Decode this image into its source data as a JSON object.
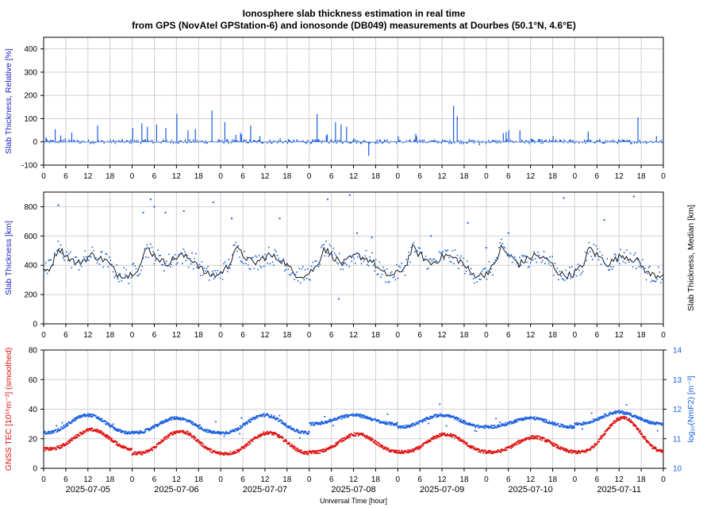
{
  "title": {
    "line1": "Ionosphere slab thickness estimation in real time",
    "line2": "from GPS (NovAtel GPStation-6) and ionosonde (DB049) measurements at Dourbes (50.1°N, 4.6°E)"
  },
  "colors": {
    "blue": "#1a5fe0",
    "red": "#e01010",
    "black": "#000000",
    "grid": "#d0d0d0",
    "ylabel_blue": "#2020c0"
  },
  "chart_data": [
    {
      "id": "relative",
      "type": "bar",
      "ylabel": "Slab Thickness, Relative [%]",
      "ylim": [
        -100,
        450
      ],
      "yticks": [
        -100,
        0,
        100,
        200,
        300,
        400
      ],
      "xlim_hours": [
        0,
        168
      ],
      "xtick_labels": [
        "0",
        "6",
        "12",
        "18",
        "0",
        "6",
        "12",
        "18",
        "0",
        "6",
        "12",
        "18",
        "0",
        "6",
        "12",
        "18",
        "0",
        "6",
        "12",
        "18",
        "0",
        "6",
        "12",
        "18",
        "0",
        "6",
        "12",
        "18",
        "0"
      ],
      "grid": true,
      "series": [
        {
          "values_note": "",
          "spikes": [
            [
              0.5,
              20
            ],
            [
              3,
              55
            ],
            [
              7.5,
              40
            ],
            [
              14.5,
              70
            ],
            [
              24,
              60
            ],
            [
              26.5,
              80
            ],
            [
              28,
              65
            ],
            [
              30.5,
              75
            ],
            [
              33,
              60
            ],
            [
              36,
              120
            ],
            [
              39,
              50
            ],
            [
              41,
              55
            ],
            [
              45.5,
              135
            ],
            [
              49,
              85
            ],
            [
              52,
              30
            ],
            [
              56,
              70
            ],
            [
              58.5,
              25
            ],
            [
              64,
              15
            ],
            [
              74,
              120
            ],
            [
              79,
              85
            ],
            [
              80.5,
              75
            ],
            [
              82,
              65
            ],
            [
              84,
              15
            ],
            [
              88,
              -60
            ],
            [
              96,
              25
            ],
            [
              111,
              155
            ],
            [
              112,
              110
            ],
            [
              118,
              -15
            ],
            [
              126,
              50
            ],
            [
              129,
              50
            ],
            [
              132,
              15
            ],
            [
              138,
              25
            ],
            [
              147.5,
              45
            ],
            [
              161,
              105
            ],
            [
              166,
              25
            ]
          ]
        }
      ]
    },
    {
      "id": "slab",
      "type": "line",
      "ylabel": "Slab Thickness [km]",
      "ylabel_right": "Slab Thickness, Median [km]",
      "ylim": [
        0,
        900
      ],
      "yticks": [
        0,
        200,
        400,
        600,
        800
      ],
      "xlim_hours": [
        0,
        168
      ],
      "xtick_labels": [
        "0",
        "6",
        "12",
        "18",
        "0",
        "6",
        "12",
        "18",
        "0",
        "6",
        "12",
        "18",
        "0",
        "6",
        "12",
        "18",
        "0",
        "6",
        "12",
        "18",
        "0",
        "6",
        "12",
        "18",
        "0",
        "6",
        "12",
        "18",
        "0"
      ],
      "grid": true,
      "series": [
        {
          "name": "",
          "kind": "median",
          "daily_profile": [
            [
              0,
              350
            ],
            [
              2,
              390
            ],
            [
              4,
              520
            ],
            [
              6,
              470
            ],
            [
              9,
              410
            ],
            [
              13,
              470
            ],
            [
              17,
              430
            ],
            [
              20,
              340
            ],
            [
              23,
              330
            ],
            [
              24,
              350
            ]
          ]
        },
        {
          "name": "",
          "kind": "measured",
          "outliers": [
            [
              4,
              810
            ],
            [
              27,
              760
            ],
            [
              29,
              850
            ],
            [
              30,
              800
            ],
            [
              33,
              760
            ],
            [
              38,
              770
            ],
            [
              46,
              830
            ],
            [
              51,
              720
            ],
            [
              64,
              720
            ],
            [
              77,
              850
            ],
            [
              83,
              880
            ],
            [
              85,
              620
            ],
            [
              89,
              590
            ],
            [
              105,
              600
            ],
            [
              115,
              690
            ],
            [
              120,
              520
            ],
            [
              126,
              620
            ],
            [
              141,
              860
            ],
            [
              152,
              710
            ],
            [
              160,
              870
            ],
            [
              80,
              170
            ]
          ]
        }
      ]
    },
    {
      "id": "tec",
      "type": "scatter",
      "ylabel": "GNSS TEC [10¹⁶m⁻²] (smoothed)",
      "ylabel_right": "log₁₀(NmF2) [m⁻³]",
      "ylim": [
        0,
        80
      ],
      "yticks": [
        0,
        20,
        40,
        60,
        80
      ],
      "ylim_right": [
        10,
        14
      ],
      "yticks_right": [
        10,
        11,
        12,
        13,
        14
      ],
      "xlim_hours": [
        0,
        168
      ],
      "xtick_labels": [
        "0",
        "6",
        "12",
        "18",
        "0",
        "6",
        "12",
        "18",
        "0",
        "6",
        "12",
        "18",
        "0",
        "6",
        "12",
        "18",
        "0",
        "6",
        "12",
        "18",
        "0",
        "6",
        "12",
        "18",
        "0",
        "6",
        "12",
        "18",
        "0"
      ],
      "date_labels": [
        "2025-07-05",
        "2025-07-06",
        "2025-07-07",
        "2025-07-08",
        "2025-07-09",
        "2025-07-10",
        "2025-07-11"
      ],
      "xlabel": "Universal Time [hour]",
      "grid": true,
      "series": [
        {
          "name": "",
          "color": "#e01010",
          "daily_minmax": [
            [
              0,
              13,
              26
            ],
            [
              1,
              10,
              25
            ],
            [
              2,
              10,
              24
            ],
            [
              3,
              11,
              23
            ],
            [
              4,
              11,
              23
            ],
            [
              5,
              11,
              21
            ],
            [
              6,
              11,
              34
            ]
          ]
        },
        {
          "name": "",
          "color": "#1a5fe0",
          "daily_minmax": [
            [
              0,
              11.2,
              11.8
            ],
            [
              1,
              11.2,
              11.7
            ],
            [
              2,
              11.2,
              11.8
            ],
            [
              3,
              11.5,
              11.8
            ],
            [
              4,
              11.4,
              11.8
            ],
            [
              5,
              11.4,
              11.7
            ],
            [
              6,
              11.5,
              11.9
            ]
          ]
        }
      ]
    }
  ]
}
